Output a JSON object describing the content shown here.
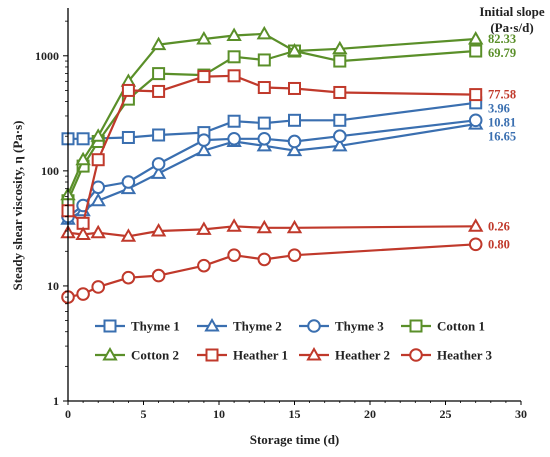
{
  "chart_data": {
    "type": "line",
    "xlabel": "Storage time (d)",
    "ylabel": "Steady shear viscosity, η (Pa·s)",
    "xlim": [
      0,
      30
    ],
    "ylim": [
      1,
      2500
    ],
    "y_scale": "log",
    "x_ticks": [
      0,
      5,
      10,
      15,
      20,
      25,
      30
    ],
    "y_ticks": [
      1,
      10,
      100,
      1000
    ],
    "grid": false,
    "legend_position": "bottom",
    "slope_title_lines": [
      "Initial slope",
      "(Pa·s/d)"
    ],
    "series": [
      {
        "name": "Thyme 1",
        "color": "#3a6fb0",
        "marker": "square",
        "x": [
          0,
          1,
          4,
          6,
          9,
          11,
          13,
          15,
          18,
          27
        ],
        "y": [
          190,
          190,
          195,
          205,
          215,
          270,
          260,
          275,
          275,
          390
        ],
        "slope": "3.96"
      },
      {
        "name": "Thyme 2",
        "color": "#3a6fb0",
        "marker": "triangle",
        "x": [
          0,
          1,
          2,
          4,
          6,
          9,
          11,
          13,
          15,
          18,
          27
        ],
        "y": [
          38,
          45,
          55,
          70,
          95,
          150,
          180,
          165,
          150,
          165,
          255
        ],
        "slope": "16.65"
      },
      {
        "name": "Thyme 3",
        "color": "#3a6fb0",
        "marker": "circle",
        "x": [
          0,
          1,
          2,
          4,
          6,
          9,
          11,
          13,
          15,
          18,
          27
        ],
        "y": [
          40,
          50,
          72,
          80,
          115,
          185,
          190,
          190,
          180,
          200,
          275
        ],
        "slope": "10.81"
      },
      {
        "name": "Cotton 1",
        "color": "#5a8f29",
        "marker": "square",
        "x": [
          0,
          1,
          2,
          4,
          6,
          9,
          11,
          13,
          15,
          18,
          27
        ],
        "y": [
          55,
          110,
          180,
          420,
          700,
          680,
          980,
          920,
          1100,
          900,
          1100
        ],
        "slope": "69.79"
      },
      {
        "name": "Cotton 2",
        "color": "#5a8f29",
        "marker": "triangle",
        "x": [
          0,
          1,
          2,
          4,
          6,
          9,
          11,
          13,
          15,
          18,
          27
        ],
        "y": [
          62,
          125,
          200,
          600,
          1250,
          1400,
          1500,
          1550,
          1100,
          1150,
          1400
        ],
        "slope": "82.33"
      },
      {
        "name": "Heather 1",
        "color": "#c0392b",
        "marker": "square",
        "x": [
          0,
          1,
          2,
          4,
          6,
          9,
          11,
          13,
          15,
          18,
          27
        ],
        "y": [
          45,
          35,
          125,
          500,
          490,
          660,
          670,
          530,
          520,
          480,
          460
        ],
        "slope": "77.58"
      },
      {
        "name": "Heather 2",
        "color": "#c0392b",
        "marker": "triangle",
        "x": [
          0,
          1,
          2,
          4,
          6,
          9,
          11,
          13,
          15,
          27
        ],
        "y": [
          29,
          28,
          29,
          27,
          30,
          31,
          33,
          32,
          32,
          33
        ],
        "slope": "0.26"
      },
      {
        "name": "Heather 3",
        "color": "#c0392b",
        "marker": "circle",
        "x": [
          0,
          1,
          2,
          4,
          6,
          9,
          11,
          13,
          15,
          27
        ],
        "y": [
          8,
          8.5,
          9.8,
          11.8,
          12.3,
          15,
          18.5,
          17,
          18.5,
          23
        ],
        "slope": "0.80"
      }
    ]
  }
}
